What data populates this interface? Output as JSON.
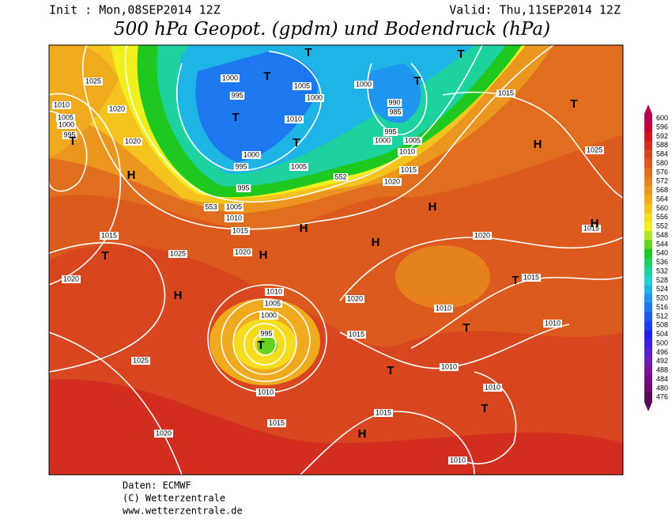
{
  "header": {
    "init": "Init : Mon,08SEP2014 12Z",
    "valid": "Valid: Thu,11SEP2014 12Z",
    "title": "500 hPa Geopot. (gpdm) und Bodendruck (hPa)"
  },
  "footer": {
    "lines": [
      "Daten: ECMWF",
      "(C) Wetterzentrale",
      "www.wetterzentrale.de"
    ]
  },
  "legend": {
    "levels": [
      {
        "label": "600",
        "color": "#b4004f"
      },
      {
        "label": "596",
        "color": "#c80032"
      },
      {
        "label": "592",
        "color": "#d2141e"
      },
      {
        "label": "588",
        "color": "#d22d1e"
      },
      {
        "label": "584",
        "color": "#d7461e"
      },
      {
        "label": "580",
        "color": "#dc5a1e"
      },
      {
        "label": "576",
        "color": "#e16e1e"
      },
      {
        "label": "572",
        "color": "#e6821e"
      },
      {
        "label": "568",
        "color": "#eb961e"
      },
      {
        "label": "564",
        "color": "#f0aa1e"
      },
      {
        "label": "560",
        "color": "#f5c31e"
      },
      {
        "label": "556",
        "color": "#f5dc1e"
      },
      {
        "label": "552",
        "color": "#f0f01e"
      },
      {
        "label": "548",
        "color": "#b4e61e"
      },
      {
        "label": "544",
        "color": "#64d21e"
      },
      {
        "label": "540",
        "color": "#1ec81e"
      },
      {
        "label": "536",
        "color": "#1ecf64"
      },
      {
        "label": "532",
        "color": "#1ed2a0"
      },
      {
        "label": "528",
        "color": "#1ed2d2"
      },
      {
        "label": "524",
        "color": "#1eb4e6"
      },
      {
        "label": "520",
        "color": "#1e96f0"
      },
      {
        "label": "516",
        "color": "#1e78f0"
      },
      {
        "label": "512",
        "color": "#1e5af0"
      },
      {
        "label": "508",
        "color": "#1e3cf0"
      },
      {
        "label": "504",
        "color": "#1e1ef0"
      },
      {
        "label": "500",
        "color": "#3c1ee6"
      },
      {
        "label": "496",
        "color": "#5a1ed2"
      },
      {
        "label": "492",
        "color": "#6e1eb4"
      },
      {
        "label": "488",
        "color": "#78149b"
      },
      {
        "label": "484",
        "color": "#780a82"
      },
      {
        "label": "480",
        "color": "#6e0a6e"
      },
      {
        "label": "476",
        "color": "#5a0a5a"
      }
    ]
  },
  "map": {
    "isobar_labels": [
      "1025",
      "1010",
      "1020",
      "1005",
      "1000",
      "995",
      "1020",
      "1000",
      "995",
      "1005",
      "1000",
      "1010",
      "1000",
      "995",
      "995",
      "1005",
      "553",
      "1005",
      "1010",
      "1015",
      "1020",
      "552",
      "1000",
      "990",
      "985",
      "995",
      "1000",
      "1010",
      "1005",
      "1015",
      "1020",
      "1015",
      "1025",
      "1015",
      "1025",
      "1020",
      "1010",
      "1005",
      "1000",
      "995",
      "1020",
      "1015",
      "1025",
      "1020",
      "1015",
      "1010",
      "1010",
      "1010",
      "1010",
      "1015",
      "1015",
      "1010",
      "1020",
      "1010",
      "1015"
    ],
    "systems": [
      "T",
      "T",
      "T",
      "T",
      "T",
      "T",
      "T",
      "T",
      "T",
      "T",
      "T",
      "T",
      "T",
      "T",
      "H",
      "H",
      "H",
      "H",
      "H",
      "H",
      "H",
      "H",
      "H"
    ]
  }
}
